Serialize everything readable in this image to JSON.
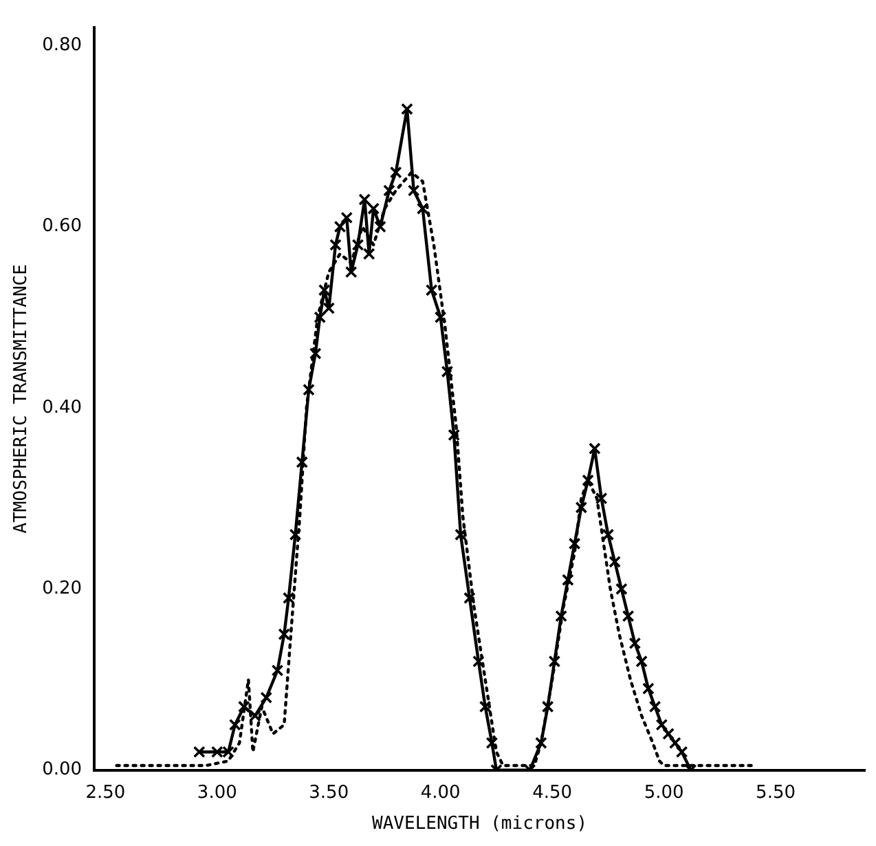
{
  "chart_data": {
    "type": "line",
    "xlabel": "WAVELENGTH (microns)",
    "ylabel": "ATMOSPHERIC TRANSMITTANCE",
    "grid": false,
    "legend": false,
    "xlim": [
      2.45,
      5.9
    ],
    "xticks": [
      {
        "value": 2.5,
        "label": "2.50"
      },
      {
        "value": 3,
        "label": "3.00"
      },
      {
        "value": 3.5,
        "label": "3.50"
      },
      {
        "value": 4,
        "label": "4.00"
      },
      {
        "value": 4.5,
        "label": "4.50"
      },
      {
        "value": 5,
        "label": "5.00"
      },
      {
        "value": 5.5,
        "label": "5.50"
      }
    ],
    "ylim": [
      0,
      0.82
    ],
    "yticks": [
      {
        "value": 0,
        "label": "0.00"
      },
      {
        "value": 0.2,
        "label": "0.20"
      },
      {
        "value": 0.4,
        "label": "0.40"
      },
      {
        "value": 0.6,
        "label": "0.60"
      },
      {
        "value": 0.8,
        "label": "0.80"
      }
    ],
    "series": [
      {
        "color": "#000000",
        "marker": "cross",
        "line_style": "solid",
        "x": [
          2.92,
          3.0,
          3.05,
          3.08,
          3.12,
          3.17,
          3.22,
          3.27,
          3.3,
          3.32,
          3.35,
          3.38,
          3.41,
          3.44,
          3.46,
          3.48,
          3.5,
          3.53,
          3.55,
          3.58,
          3.6,
          3.63,
          3.66,
          3.68,
          3.7,
          3.73,
          3.77,
          3.8,
          3.85,
          3.88,
          3.92,
          3.96,
          4.0,
          4.03,
          4.06,
          4.09,
          4.13,
          4.17,
          4.2,
          4.23,
          4.25,
          4.4,
          4.45,
          4.48,
          4.51,
          4.54,
          4.57,
          4.6,
          4.63,
          4.66,
          4.69,
          4.72,
          4.75,
          4.78,
          4.81,
          4.84,
          4.87,
          4.9,
          4.93,
          4.96,
          4.99,
          5.02,
          5.05,
          5.08,
          5.12
        ],
        "values": [
          0.02,
          0.02,
          0.02,
          0.05,
          0.07,
          0.06,
          0.08,
          0.11,
          0.15,
          0.19,
          0.26,
          0.34,
          0.42,
          0.46,
          0.5,
          0.53,
          0.51,
          0.58,
          0.6,
          0.61,
          0.55,
          0.58,
          0.63,
          0.57,
          0.62,
          0.6,
          0.64,
          0.66,
          0.73,
          0.64,
          0.62,
          0.53,
          0.5,
          0.44,
          0.37,
          0.26,
          0.19,
          0.12,
          0.07,
          0.03,
          0.0,
          0.0,
          0.03,
          0.07,
          0.12,
          0.17,
          0.21,
          0.25,
          0.29,
          0.32,
          0.355,
          0.3,
          0.26,
          0.23,
          0.2,
          0.17,
          0.14,
          0.12,
          0.09,
          0.07,
          0.05,
          0.04,
          0.03,
          0.02,
          0.0
        ]
      },
      {
        "color": "#000000",
        "marker": "none",
        "line_style": "dotted",
        "x": [
          2.55,
          2.95,
          3.05,
          3.1,
          3.14,
          3.16,
          3.2,
          3.25,
          3.3,
          3.33,
          3.37,
          3.4,
          3.45,
          3.5,
          3.55,
          3.6,
          3.65,
          3.7,
          3.75,
          3.8,
          3.87,
          3.92,
          3.97,
          4.02,
          4.07,
          4.1,
          4.15,
          4.2,
          4.25,
          4.28,
          4.42,
          4.45,
          4.5,
          4.55,
          4.6,
          4.63,
          4.66,
          4.7,
          4.73,
          4.76,
          4.8,
          4.85,
          4.9,
          4.95,
          4.98,
          5.0,
          5.4
        ],
        "values": [
          0.005,
          0.005,
          0.01,
          0.03,
          0.1,
          0.02,
          0.07,
          0.04,
          0.05,
          0.15,
          0.28,
          0.4,
          0.5,
          0.55,
          0.57,
          0.56,
          0.6,
          0.58,
          0.62,
          0.64,
          0.66,
          0.65,
          0.58,
          0.49,
          0.38,
          0.28,
          0.18,
          0.1,
          0.02,
          0.005,
          0.005,
          0.03,
          0.1,
          0.18,
          0.24,
          0.3,
          0.32,
          0.3,
          0.25,
          0.2,
          0.15,
          0.1,
          0.06,
          0.03,
          0.01,
          0.005,
          0.005
        ]
      }
    ]
  }
}
